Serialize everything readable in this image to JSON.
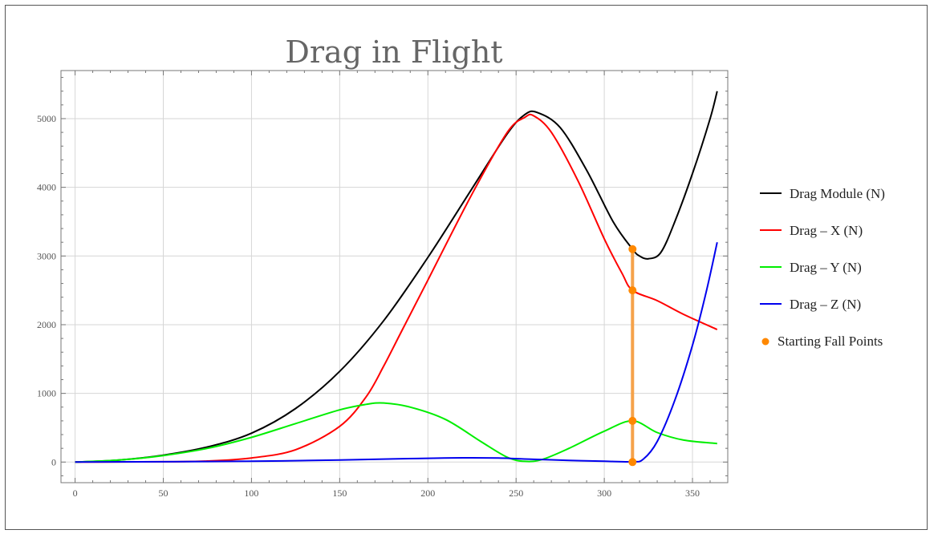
{
  "chart_data": {
    "type": "line",
    "title": "Drag in Flight",
    "xlabel": "",
    "ylabel": "",
    "xlim": [
      -8,
      370
    ],
    "ylim": [
      -300,
      5700
    ],
    "x_ticks": [
      0,
      50,
      100,
      150,
      200,
      250,
      300,
      350
    ],
    "y_ticks": [
      0,
      1000,
      2000,
      3000,
      4000,
      5000
    ],
    "grid": true,
    "legend_position": "right",
    "series": [
      {
        "name": "Drag Module (N)",
        "color": "#000000",
        "points": [
          [
            0,
            0
          ],
          [
            25,
            30
          ],
          [
            50,
            100
          ],
          [
            75,
            220
          ],
          [
            100,
            420
          ],
          [
            125,
            780
          ],
          [
            150,
            1320
          ],
          [
            175,
            2060
          ],
          [
            200,
            2980
          ],
          [
            225,
            3980
          ],
          [
            245,
            4780
          ],
          [
            255,
            5060
          ],
          [
            262,
            5090
          ],
          [
            275,
            4870
          ],
          [
            290,
            4250
          ],
          [
            305,
            3500
          ],
          [
            316,
            3100
          ],
          [
            320,
            3000
          ],
          [
            325,
            2960
          ],
          [
            332,
            3050
          ],
          [
            340,
            3500
          ],
          [
            350,
            4200
          ],
          [
            360,
            5000
          ],
          [
            364,
            5400
          ]
        ]
      },
      {
        "name": "Drag – X (N)",
        "color": "#ff0000",
        "points": [
          [
            0,
            0
          ],
          [
            50,
            5
          ],
          [
            75,
            15
          ],
          [
            100,
            60
          ],
          [
            125,
            180
          ],
          [
            150,
            520
          ],
          [
            165,
            950
          ],
          [
            175,
            1400
          ],
          [
            185,
            1900
          ],
          [
            200,
            2650
          ],
          [
            225,
            3900
          ],
          [
            245,
            4800
          ],
          [
            255,
            5020
          ],
          [
            260,
            5040
          ],
          [
            270,
            4800
          ],
          [
            285,
            4100
          ],
          [
            300,
            3250
          ],
          [
            310,
            2750
          ],
          [
            316,
            2500
          ],
          [
            330,
            2350
          ],
          [
            345,
            2150
          ],
          [
            364,
            1930
          ]
        ]
      },
      {
        "name": "Drag – Y (N)",
        "color": "#00ee00",
        "points": [
          [
            0,
            0
          ],
          [
            25,
            30
          ],
          [
            50,
            95
          ],
          [
            75,
            200
          ],
          [
            100,
            360
          ],
          [
            125,
            560
          ],
          [
            150,
            760
          ],
          [
            165,
            840
          ],
          [
            175,
            860
          ],
          [
            190,
            800
          ],
          [
            210,
            620
          ],
          [
            230,
            300
          ],
          [
            245,
            70
          ],
          [
            255,
            10
          ],
          [
            265,
            40
          ],
          [
            280,
            200
          ],
          [
            300,
            450
          ],
          [
            316,
            600
          ],
          [
            330,
            430
          ],
          [
            345,
            320
          ],
          [
            364,
            270
          ]
        ]
      },
      {
        "name": "Drag – Z (N)",
        "color": "#0000ee",
        "points": [
          [
            0,
            0
          ],
          [
            50,
            5
          ],
          [
            100,
            12
          ],
          [
            150,
            30
          ],
          [
            180,
            45
          ],
          [
            200,
            55
          ],
          [
            220,
            62
          ],
          [
            240,
            58
          ],
          [
            260,
            40
          ],
          [
            280,
            25
          ],
          [
            300,
            12
          ],
          [
            316,
            5
          ],
          [
            322,
            40
          ],
          [
            330,
            300
          ],
          [
            340,
            900
          ],
          [
            350,
            1700
          ],
          [
            358,
            2500
          ],
          [
            364,
            3200
          ]
        ]
      },
      {
        "name": "Starting Fall Points",
        "color": "#ff8800",
        "type": "scatter",
        "points": [
          [
            316,
            3100
          ],
          [
            316,
            2500
          ],
          [
            316,
            600
          ],
          [
            316,
            0
          ]
        ]
      }
    ]
  }
}
